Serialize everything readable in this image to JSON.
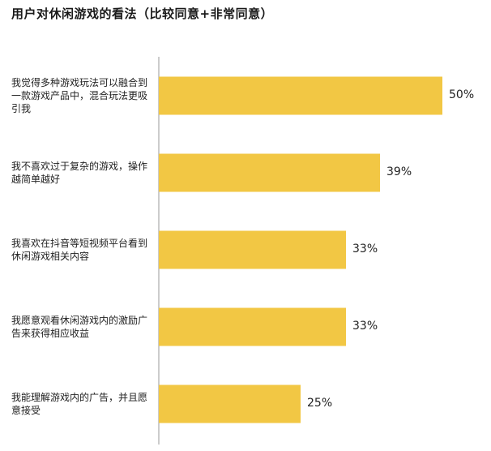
{
  "title": "用户对休闲游戏的看法（比较同意+非常同意）",
  "colors": {
    "bar": "#F2C744",
    "axis": "#999999",
    "text": "#222222"
  },
  "chart_data": {
    "type": "bar",
    "orientation": "horizontal",
    "title": "用户对休闲游戏的看法（比较同意+非常同意）",
    "categories": [
      "我觉得多种游戏玩法可以融合到一款游戏产品中，混合玩法更吸引我",
      "我不喜欢过于复杂的游戏，操作越简单越好",
      "我喜欢在抖音等短视频平台看到休闲游戏相关内容",
      "我愿意观看休闲游戏内的激励广告来获得相应收益",
      "我能理解游戏内的广告，并且愿意接受"
    ],
    "values": [
      50,
      39,
      33,
      33,
      25
    ],
    "value_labels": [
      "50%",
      "39%",
      "33%",
      "33%",
      "25%"
    ],
    "unit": "%",
    "xlim": [
      0,
      50
    ],
    "grid": false,
    "legend": "none"
  }
}
